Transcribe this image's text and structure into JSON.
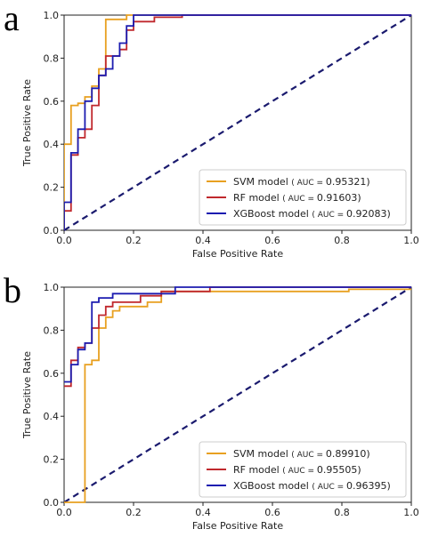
{
  "chart_data": [
    {
      "type": "line",
      "panel_label": "a",
      "xlabel": "False Positive Rate",
      "ylabel": "True Positive Rate",
      "xlim": [
        0,
        1
      ],
      "ylim": [
        0,
        1
      ],
      "xticks": [
        "0.0",
        "0.2",
        "0.4",
        "0.6",
        "0.8",
        "1.0"
      ],
      "yticks": [
        "0.0",
        "0.2",
        "0.4",
        "0.6",
        "0.8",
        "1.0"
      ],
      "legend_position": "lower-right",
      "diagonal": {
        "color": "#1a1a6e",
        "style": "dashed"
      },
      "series": [
        {
          "name": "SVM model",
          "auc_prefix": "( AUC = ",
          "auc": "0.95321",
          "auc_suffix": ")",
          "color": "#e8a020",
          "points": [
            [
              0,
              0
            ],
            [
              0,
              0.4
            ],
            [
              0.02,
              0.4
            ],
            [
              0.02,
              0.58
            ],
            [
              0.04,
              0.58
            ],
            [
              0.04,
              0.59
            ],
            [
              0.06,
              0.59
            ],
            [
              0.06,
              0.62
            ],
            [
              0.08,
              0.62
            ],
            [
              0.08,
              0.67
            ],
            [
              0.1,
              0.67
            ],
            [
              0.1,
              0.75
            ],
            [
              0.12,
              0.75
            ],
            [
              0.12,
              0.98
            ],
            [
              0.18,
              0.98
            ],
            [
              0.18,
              1.0
            ],
            [
              1,
              1
            ]
          ]
        },
        {
          "name": "RF model",
          "auc_prefix": "( AUC = ",
          "auc": "0.91603",
          "auc_suffix": ")",
          "color": "#c0282d",
          "points": [
            [
              0,
              0
            ],
            [
              0,
              0.09
            ],
            [
              0.02,
              0.09
            ],
            [
              0.02,
              0.35
            ],
            [
              0.04,
              0.35
            ],
            [
              0.04,
              0.43
            ],
            [
              0.06,
              0.43
            ],
            [
              0.06,
              0.47
            ],
            [
              0.08,
              0.47
            ],
            [
              0.08,
              0.58
            ],
            [
              0.1,
              0.58
            ],
            [
              0.1,
              0.72
            ],
            [
              0.12,
              0.72
            ],
            [
              0.12,
              0.81
            ],
            [
              0.14,
              0.81
            ],
            [
              0.14,
              0.81
            ],
            [
              0.16,
              0.81
            ],
            [
              0.16,
              0.84
            ],
            [
              0.18,
              0.84
            ],
            [
              0.18,
              0.93
            ],
            [
              0.2,
              0.93
            ],
            [
              0.2,
              0.97
            ],
            [
              0.26,
              0.97
            ],
            [
              0.26,
              0.99
            ],
            [
              0.34,
              0.99
            ],
            [
              0.34,
              1.0
            ],
            [
              1,
              1
            ]
          ]
        },
        {
          "name": "XGBoost model",
          "auc_prefix": "( AUC = ",
          "auc": "0.92083",
          "auc_suffix": ")",
          "color": "#1c1cb0",
          "points": [
            [
              0,
              0
            ],
            [
              0,
              0.13
            ],
            [
              0.02,
              0.13
            ],
            [
              0.02,
              0.36
            ],
            [
              0.04,
              0.36
            ],
            [
              0.04,
              0.47
            ],
            [
              0.06,
              0.47
            ],
            [
              0.06,
              0.6
            ],
            [
              0.08,
              0.6
            ],
            [
              0.08,
              0.66
            ],
            [
              0.1,
              0.66
            ],
            [
              0.1,
              0.72
            ],
            [
              0.12,
              0.72
            ],
            [
              0.12,
              0.75
            ],
            [
              0.14,
              0.75
            ],
            [
              0.14,
              0.81
            ],
            [
              0.16,
              0.81
            ],
            [
              0.16,
              0.87
            ],
            [
              0.18,
              0.87
            ],
            [
              0.18,
              0.95
            ],
            [
              0.2,
              0.95
            ],
            [
              0.2,
              1.0
            ],
            [
              1,
              1
            ]
          ]
        }
      ]
    },
    {
      "type": "line",
      "panel_label": "b",
      "xlabel": "False Positive Rate",
      "ylabel": "True Positive Rate",
      "xlim": [
        0,
        1
      ],
      "ylim": [
        0,
        1
      ],
      "xticks": [
        "0.0",
        "0.2",
        "0.4",
        "0.6",
        "0.8",
        "1.0"
      ],
      "yticks": [
        "0.0",
        "0.2",
        "0.4",
        "0.6",
        "0.8",
        "1.0"
      ],
      "legend_position": "lower-right",
      "diagonal": {
        "color": "#1a1a6e",
        "style": "dashed"
      },
      "series": [
        {
          "name": "SVM model",
          "auc_prefix": "( AUC = ",
          "auc": "0.89910",
          "auc_suffix": ")",
          "color": "#e8a020",
          "points": [
            [
              0,
              0
            ],
            [
              0.06,
              0
            ],
            [
              0.06,
              0.06
            ],
            [
              0.06,
              0.64
            ],
            [
              0.08,
              0.64
            ],
            [
              0.08,
              0.66
            ],
            [
              0.1,
              0.66
            ],
            [
              0.1,
              0.81
            ],
            [
              0.12,
              0.81
            ],
            [
              0.12,
              0.86
            ],
            [
              0.14,
              0.86
            ],
            [
              0.14,
              0.89
            ],
            [
              0.16,
              0.89
            ],
            [
              0.16,
              0.91
            ],
            [
              0.24,
              0.91
            ],
            [
              0.24,
              0.93
            ],
            [
              0.28,
              0.93
            ],
            [
              0.28,
              0.98
            ],
            [
              0.82,
              0.98
            ],
            [
              0.82,
              0.99
            ],
            [
              1,
              0.99
            ]
          ]
        },
        {
          "name": "RF model",
          "auc_prefix": "( AUC = ",
          "auc": "0.95505",
          "auc_suffix": ")",
          "color": "#c0282d",
          "points": [
            [
              0,
              0.54
            ],
            [
              0.02,
              0.54
            ],
            [
              0.02,
              0.66
            ],
            [
              0.04,
              0.66
            ],
            [
              0.04,
              0.72
            ],
            [
              0.06,
              0.72
            ],
            [
              0.06,
              0.74
            ],
            [
              0.08,
              0.74
            ],
            [
              0.08,
              0.81
            ],
            [
              0.1,
              0.81
            ],
            [
              0.1,
              0.87
            ],
            [
              0.12,
              0.87
            ],
            [
              0.12,
              0.91
            ],
            [
              0.14,
              0.91
            ],
            [
              0.14,
              0.93
            ],
            [
              0.22,
              0.93
            ],
            [
              0.22,
              0.96
            ],
            [
              0.28,
              0.96
            ],
            [
              0.28,
              0.98
            ],
            [
              0.42,
              0.98
            ],
            [
              0.42,
              1.0
            ],
            [
              1,
              1
            ]
          ]
        },
        {
          "name": "XGBoost model",
          "auc_prefix": "( AUC = ",
          "auc": "0.96395",
          "auc_suffix": ")",
          "color": "#1c1cb0",
          "points": [
            [
              0,
              0.56
            ],
            [
              0.02,
              0.56
            ],
            [
              0.02,
              0.64
            ],
            [
              0.04,
              0.64
            ],
            [
              0.04,
              0.71
            ],
            [
              0.06,
              0.71
            ],
            [
              0.06,
              0.74
            ],
            [
              0.08,
              0.74
            ],
            [
              0.08,
              0.93
            ],
            [
              0.1,
              0.93
            ],
            [
              0.1,
              0.95
            ],
            [
              0.14,
              0.95
            ],
            [
              0.14,
              0.97
            ],
            [
              0.32,
              0.97
            ],
            [
              0.32,
              1.0
            ],
            [
              1,
              1
            ]
          ]
        }
      ]
    }
  ]
}
